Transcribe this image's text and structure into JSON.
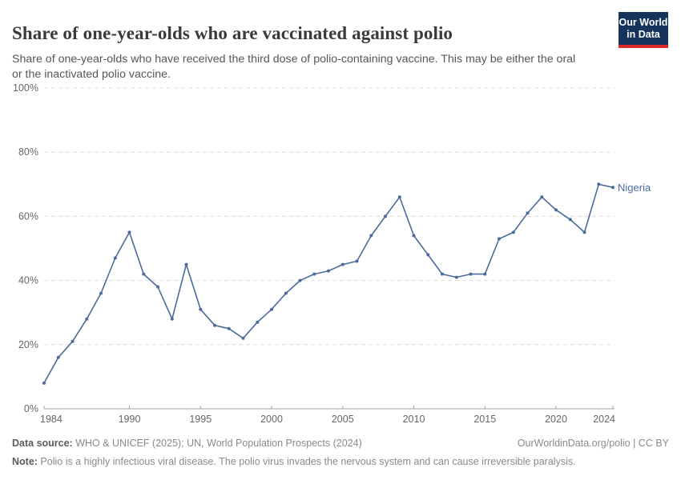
{
  "header": {
    "title": "Share of one-year-olds who are vaccinated against polio",
    "subtitle": "Share of one-year-olds who have received the third dose of polio-containing vaccine. This may be either the oral or the inactivated polio vaccine."
  },
  "logo": {
    "line1": "Our World",
    "line2": "in Data",
    "bg_color": "#16335b",
    "accent_color": "#dc2a2a"
  },
  "chart_data": {
    "type": "line",
    "title": "Share of one-year-olds who are vaccinated against polio",
    "xlabel": "",
    "ylabel": "",
    "xlim": [
      1984,
      2024
    ],
    "ylim": [
      0,
      100
    ],
    "grid": "horizontal-dashed",
    "legend_position": "end-of-line-label",
    "x_ticks": [
      1984,
      1990,
      1995,
      2000,
      2005,
      2010,
      2015,
      2020,
      2024
    ],
    "y_ticks": [
      0,
      20,
      40,
      60,
      80,
      100
    ],
    "y_tick_suffix": "%",
    "series": [
      {
        "name": "Nigeria",
        "color": "#4C6A9C",
        "x": [
          1984,
          1985,
          1986,
          1987,
          1988,
          1989,
          1990,
          1991,
          1992,
          1993,
          1994,
          1995,
          1996,
          1997,
          1998,
          1999,
          2000,
          2001,
          2002,
          2003,
          2004,
          2005,
          2006,
          2007,
          2008,
          2009,
          2010,
          2011,
          2012,
          2013,
          2014,
          2015,
          2016,
          2017,
          2018,
          2019,
          2020,
          2021,
          2022,
          2023,
          2024
        ],
        "values": [
          8,
          16,
          21,
          28,
          36,
          47,
          55,
          42,
          38,
          28,
          45,
          31,
          26,
          25,
          22,
          27,
          31,
          36,
          40,
          42,
          43,
          45,
          46,
          54,
          60,
          66,
          54,
          48,
          42,
          41,
          42,
          42,
          53,
          55,
          61,
          66,
          62,
          59,
          55,
          70,
          69
        ]
      }
    ],
    "colors": {
      "gridline": "#dcdcdc",
      "axis_line": "#a3a3a3",
      "tick_label": "#666666"
    }
  },
  "footer": {
    "source_label": "Data source:",
    "source_text": " WHO & UNICEF (2025); UN, World Population Prospects (2024)",
    "attribution": "OurWorldinData.org/polio | CC BY",
    "note_label": "Note:",
    "note_text": " Polio is a highly infectious viral disease. The polio virus invades the nervous system and can cause irreversible paralysis."
  }
}
